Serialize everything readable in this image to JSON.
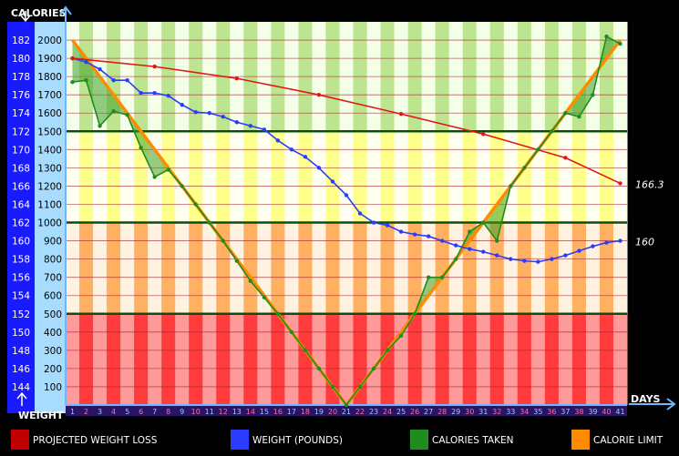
{
  "chart_data": {
    "type": "line",
    "left_axis_label": "CALORIES",
    "weight_axis_label": "WEIGHT",
    "x_axis_label": "DAYS",
    "x": [
      1,
      2,
      3,
      4,
      5,
      6,
      7,
      8,
      9,
      10,
      11,
      12,
      13,
      14,
      15,
      16,
      17,
      18,
      19,
      20,
      21,
      22,
      23,
      24,
      25,
      26,
      27,
      28,
      29,
      30,
      31,
      32,
      33,
      34,
      35,
      36,
      37,
      38,
      39,
      40,
      41
    ],
    "calorie_ticks": [
      100,
      200,
      300,
      400,
      500,
      600,
      700,
      800,
      900,
      1000,
      1100,
      1200,
      1300,
      1400,
      1500,
      1600,
      1700,
      1800,
      1900,
      2000
    ],
    "weight_ticks": [
      144,
      146,
      148,
      150,
      152,
      154,
      156,
      158,
      160,
      162,
      164,
      166,
      168,
      170,
      172,
      174,
      176,
      178,
      180,
      182
    ],
    "calorie_range": [
      0,
      2100
    ],
    "weight_range": [
      142,
      184
    ],
    "reference_lines_calories": [
      500,
      1000,
      1500
    ],
    "series": [
      {
        "name": "CALORIE LIMIT",
        "axis": "calories",
        "color": "#ff8c00",
        "x": [
          1,
          21,
          41
        ],
        "values": [
          2000,
          0,
          2000
        ]
      },
      {
        "name": "CALORIES TAKEN",
        "axis": "calories",
        "color": "#1e8c1e",
        "values": [
          1770,
          1780,
          1530,
          1610,
          1590,
          1410,
          1250,
          1290,
          1200,
          1100,
          1000,
          900,
          790,
          680,
          590,
          500,
          400,
          300,
          200,
          100,
          0,
          100,
          200,
          300,
          380,
          500,
          700,
          700,
          800,
          950,
          1000,
          900,
          1200,
          1300,
          1400,
          1500,
          1600,
          1580,
          1700,
          2020,
          1980
        ]
      },
      {
        "name": "WEIGHT (POUNDS)",
        "axis": "weight",
        "color": "#2a3cff",
        "values": [
          180,
          179.6,
          178.8,
          177.6,
          177.6,
          176.2,
          176.2,
          175.9,
          174.9,
          174.1,
          174,
          173.6,
          173,
          172.6,
          172.2,
          171,
          170,
          169.2,
          168,
          166.5,
          165,
          163,
          162,
          161.7,
          161,
          160.7,
          160.5,
          160,
          159.5,
          159.1,
          158.8,
          158.4,
          158,
          157.8,
          157.7,
          158,
          158.4,
          158.9,
          159.4,
          159.8,
          160
        ],
        "end_label": "160"
      },
      {
        "name": "PROJECTED WEIGHT LOSS",
        "axis": "weight",
        "color": "#e01818",
        "x": [
          1,
          7,
          13,
          19,
          25,
          31,
          37,
          41
        ],
        "values": [
          180,
          179.1,
          177.8,
          176,
          173.9,
          171.7,
          169.1,
          166.3
        ],
        "end_label": "166.3"
      }
    ],
    "legend": [
      "PROJECTED WEIGHT LOSS",
      "WEIGHT (POUNDS)",
      "CALORIES TAKEN",
      "CALORIE LIMIT"
    ],
    "legend_colors": [
      "#c00000",
      "#2a3cff",
      "#1e8c1e",
      "#ff8c00"
    ],
    "zone_colors": {
      "green": "#bde58f",
      "yellow": "#ffff8c",
      "orange": "#ffb060",
      "red": "#ff3b3b"
    }
  }
}
